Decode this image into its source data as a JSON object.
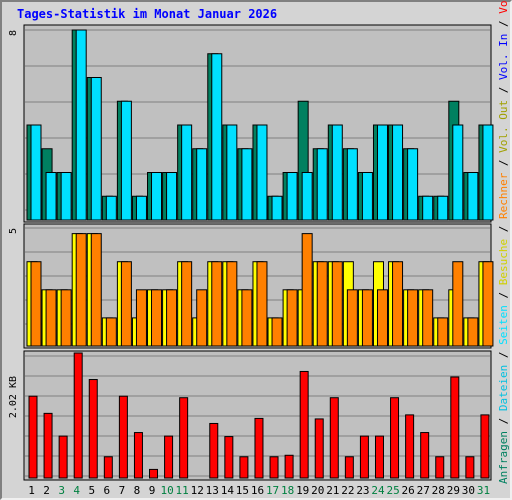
{
  "chart_data": {
    "type": "bar",
    "title": "Tages-Statistik im Monat Januar 2026",
    "categories": [
      "1",
      "2",
      "3",
      "4",
      "5",
      "6",
      "7",
      "8",
      "9",
      "10",
      "11",
      "12",
      "13",
      "14",
      "15",
      "16",
      "17",
      "18",
      "19",
      "20",
      "21",
      "22",
      "23",
      "24",
      "25",
      "26",
      "27",
      "28",
      "29",
      "30",
      "31"
    ],
    "weekend_days": [
      "3",
      "4",
      "10",
      "11",
      "17",
      "18",
      "24",
      "25",
      "31"
    ],
    "colors": {
      "anfragen": "#008060",
      "dateien": "#00e0ff",
      "seiten": "#00c0e0",
      "besuche": "#ffff00",
      "rechner": "#ff8000",
      "volumen": "#ff0000",
      "weekday_label": "#000000",
      "weekend_label": "#008040",
      "plot_bg": "#c0c0c0",
      "grid": "#808080"
    },
    "panels": [
      {
        "id": "top",
        "ytick": "8",
        "ymax": 8,
        "series": [
          {
            "name": "Anfragen",
            "values": [
              4,
              3,
              2,
              8,
              6,
              1,
              5,
              1,
              2,
              2,
              4,
              3,
              7,
              4,
              3,
              4,
              1,
              2,
              5,
              3,
              4,
              3,
              2,
              4,
              4,
              3,
              1,
              1,
              5,
              2,
              4
            ]
          },
          {
            "name": "Dateien",
            "values": [
              4,
              2,
              2,
              8,
              6,
              1,
              5,
              1,
              2,
              2,
              4,
              3,
              7,
              4,
              3,
              4,
              1,
              2,
              2,
              3,
              4,
              3,
              2,
              4,
              4,
              3,
              1,
              1,
              4,
              2,
              4
            ]
          }
        ]
      },
      {
        "id": "mid",
        "ytick": "5",
        "ymax": 4.2,
        "series": [
          {
            "name": "Besuche",
            "values": [
              3,
              2,
              2,
              4,
              4,
              1,
              3,
              1,
              2,
              2,
              3,
              1,
              3,
              3,
              2,
              3,
              1,
              2,
              2,
              3,
              3,
              3,
              2,
              3,
              3,
              2,
              2,
              1,
              2,
              1,
              3
            ]
          },
          {
            "name": "Rechner",
            "values": [
              3,
              2,
              2,
              4,
              4,
              1,
              3,
              2,
              2,
              2,
              3,
              2,
              3,
              3,
              2,
              3,
              1,
              2,
              4,
              3,
              3,
              2,
              2,
              2,
              3,
              2,
              2,
              1,
              3,
              1,
              3
            ]
          }
        ]
      },
      {
        "id": "bot",
        "ytick": "2.02 KB",
        "ymax": 2.02,
        "unit": "KB",
        "series": [
          {
            "name": "Volumen",
            "values": [
              1.62,
              1.28,
              0.83,
              3.19,
              1.95,
              0.42,
              1.62,
              0.9,
              0.17,
              0.83,
              1.59,
              0,
              1.08,
              0.82,
              0.42,
              1.18,
              0.42,
              0.45,
              2.11,
              1.17,
              1.59,
              0.42,
              0.83,
              0.83,
              1.59,
              1.25,
              0.9,
              0.42,
              2.0,
              0.42,
              1.25
            ]
          }
        ]
      }
    ],
    "legend_right": [
      {
        "text": "Anfragen",
        "color": "#008060"
      },
      {
        "text": " / ",
        "color": "#000000"
      },
      {
        "text": "Dateien",
        "color": "#00c0e0"
      },
      {
        "text": " / ",
        "color": "#000000"
      },
      {
        "text": "Seiten",
        "color": "#00e0ff"
      },
      {
        "text": " / ",
        "color": "#000000"
      },
      {
        "text": "Besuche",
        "color": "#d0d000"
      },
      {
        "text": " / ",
        "color": "#000000"
      },
      {
        "text": "Rechner",
        "color": "#ff8000"
      },
      {
        "text": " / ",
        "color": "#000000"
      },
      {
        "text": "Vol. Out",
        "color": "#a0a000"
      },
      {
        "text": " / ",
        "color": "#000000"
      },
      {
        "text": "Vol. In",
        "color": "#0000ff"
      },
      {
        "text": " / ",
        "color": "#000000"
      },
      {
        "text": "Volumen",
        "color": "#ff0000"
      }
    ]
  }
}
